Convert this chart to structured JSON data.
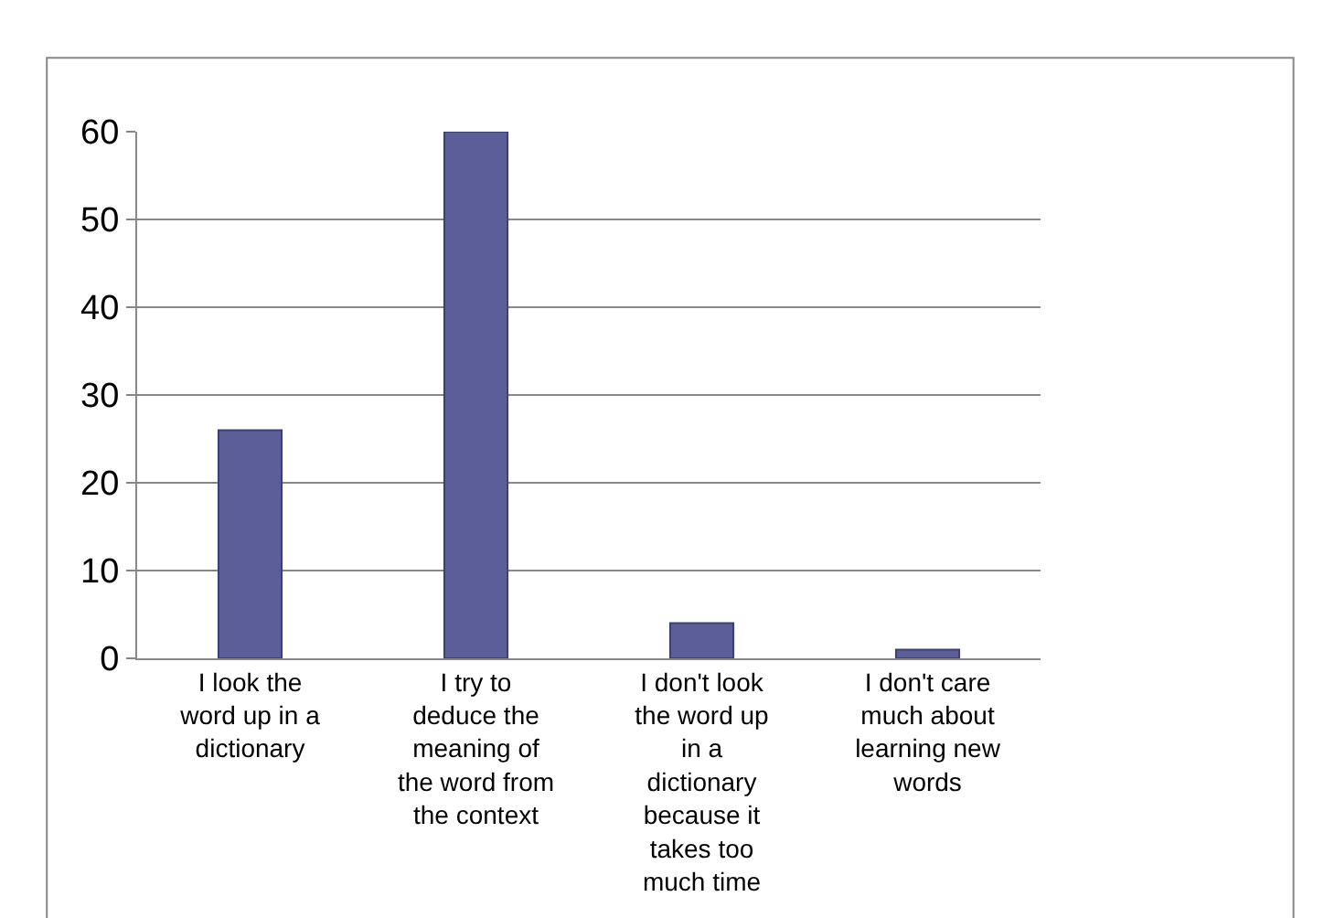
{
  "chart_data": {
    "type": "bar",
    "categories": [
      "I look the word up in a dictionary",
      "I try to deduce the meaning of the word from the context",
      "I don't look the word up in a dictionary because it takes too much time",
      "I don't care much about learning new words"
    ],
    "values": [
      26,
      60,
      4,
      1
    ],
    "color": "#5c5e9a",
    "ylim": [
      0,
      60
    ],
    "yticks": [
      0,
      10,
      20,
      30,
      40,
      50,
      60
    ],
    "grid": "y",
    "legend": false
  }
}
